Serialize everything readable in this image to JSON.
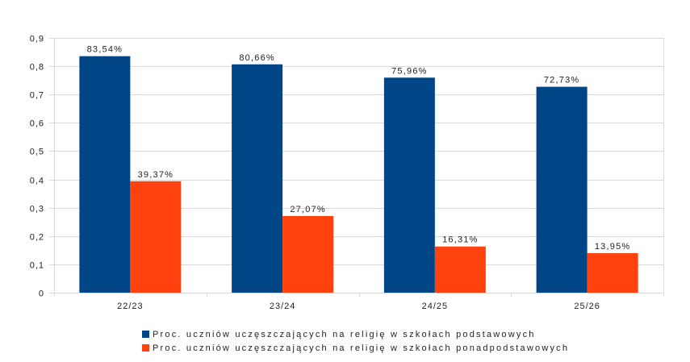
{
  "chart_data": {
    "type": "bar",
    "title": "",
    "xlabel": "",
    "ylabel": "",
    "categories": [
      "22/23",
      "23/24",
      "24/25",
      "25/26"
    ],
    "series": [
      {
        "name": "Proc. uczniów uczęszczających na religię w szkołach podstawowych",
        "color": "#004586",
        "values": [
          0.8354,
          0.8066,
          0.7596,
          0.7273
        ],
        "labels": [
          "83,54%",
          "80,66%",
          "75,96%",
          "72,73%"
        ]
      },
      {
        "name": "Proc. uczniów uczęszczających na religię w szkołach ponadpodstawowych",
        "color": "#ff420e",
        "values": [
          0.3937,
          0.2707,
          0.1631,
          0.1395
        ],
        "labels": [
          "39,37%",
          "27,07%",
          "16,31%",
          "13,95%"
        ]
      }
    ],
    "ylim": [
      0,
      0.9
    ],
    "yticks": [
      0,
      0.1,
      0.2,
      0.3,
      0.4,
      0.5,
      0.6,
      0.7,
      0.8,
      0.9
    ],
    "ytick_labels": [
      "0",
      "0,1",
      "0,2",
      "0,3",
      "0,4",
      "0,5",
      "0,6",
      "0,7",
      "0,8",
      "0,9"
    ],
    "grid": true,
    "gridline_color": "#d9d9d9",
    "legend_position": "bottom"
  }
}
